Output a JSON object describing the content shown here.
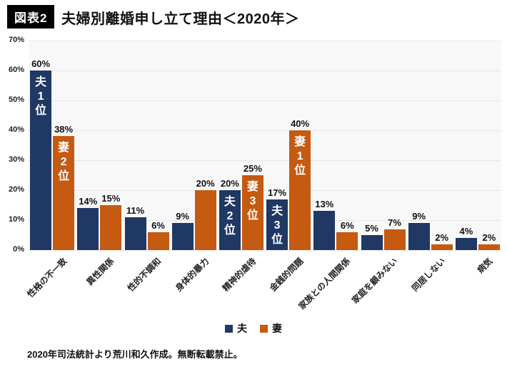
{
  "header": {
    "badge": "図表2",
    "title": "夫婦別離婚申し立て理由＜2020年＞"
  },
  "chart_data": {
    "type": "bar",
    "title": "夫婦別離婚申し立て理由＜2020年＞",
    "categories": [
      "性格の不一致",
      "異性関係",
      "性的不調和",
      "身体的暴力",
      "精神的虐待",
      "金銭的問題",
      "家族との人間関係",
      "家庭を顧みない",
      "同居しない",
      "病気"
    ],
    "series": [
      {
        "name": "夫",
        "color": "#1F3864",
        "values": [
          60,
          14,
          11,
          9,
          20,
          17,
          13,
          5,
          9,
          4
        ]
      },
      {
        "name": "妻",
        "color": "#C55A11",
        "values": [
          38,
          15,
          6,
          20,
          25,
          40,
          6,
          7,
          2,
          2
        ]
      }
    ],
    "value_suffix": "%",
    "ylim": [
      0,
      70
    ],
    "yticks": [
      0,
      10,
      20,
      30,
      40,
      50,
      60,
      70
    ],
    "ytick_suffix": "%",
    "grid": true,
    "legend_position": "bottom",
    "rank_labels": [
      {
        "series_index": 0,
        "category_index": 0,
        "text": "夫1位"
      },
      {
        "series_index": 1,
        "category_index": 0,
        "text": "妻2位"
      },
      {
        "series_index": 0,
        "category_index": 4,
        "text": "夫2位"
      },
      {
        "series_index": 1,
        "category_index": 4,
        "text": "妻3位"
      },
      {
        "series_index": 0,
        "category_index": 5,
        "text": "夫3位"
      },
      {
        "series_index": 1,
        "category_index": 5,
        "text": "妻1位"
      }
    ]
  },
  "footer": {
    "text": "2020年司法統計より荒川和久作成。無断転載禁止。"
  }
}
